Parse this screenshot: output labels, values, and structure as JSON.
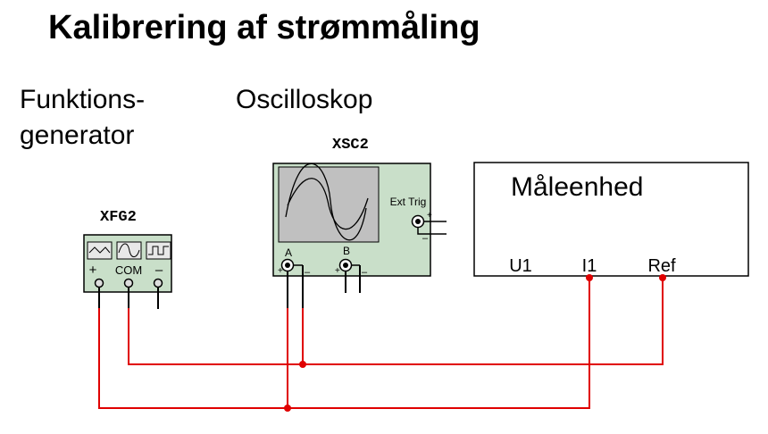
{
  "title": "Kalibrering af strømmåling",
  "labels": {
    "function_generator_line1": "Funktions-",
    "function_generator_line2": "generator",
    "oscilloscope": "Oscilloskop",
    "measurement_unit": "Måleenhed"
  },
  "function_generator": {
    "ref": "XFG2",
    "terminals": {
      "plus": "+",
      "com": "COM",
      "minus": "–"
    },
    "waveforms": [
      "triangle",
      "sine",
      "square"
    ]
  },
  "oscilloscope": {
    "ref": "XSC2",
    "channel_a": "A",
    "channel_b": "B",
    "ext_trig": "Ext Trig",
    "plus": "+",
    "minus": "–"
  },
  "measurement_unit": {
    "terminals": [
      "U1",
      "I1",
      "Ref"
    ]
  },
  "colors": {
    "wire": "#e00000",
    "instrument_body": "#c9dfc9",
    "screen": "#c0c0c0"
  }
}
